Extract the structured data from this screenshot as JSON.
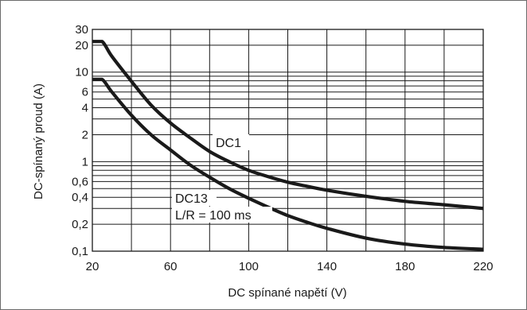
{
  "chart_data": {
    "type": "line",
    "xlabel": "DC spínané napětí (V)",
    "ylabel": "DC-spínaný proud (A)",
    "x_scale": "linear",
    "y_scale": "log",
    "xlim": [
      20,
      220
    ],
    "ylim": [
      0.1,
      30
    ],
    "grid": true,
    "x_ticks": [
      20,
      60,
      100,
      140,
      180,
      220
    ],
    "x_tick_labels": [
      "20",
      "60",
      "100",
      "140",
      "180",
      "220"
    ],
    "y_ticks": [
      0.1,
      0.2,
      0.4,
      0.6,
      1,
      2,
      4,
      6,
      10,
      20,
      30
    ],
    "y_tick_labels": [
      "0,1",
      "0,2",
      "0,4",
      "0,6",
      "1",
      "2",
      "4",
      "6",
      "10",
      "20",
      "30"
    ],
    "series": [
      {
        "name": "DC1",
        "x": [
          20,
          25,
          30,
          40,
          50,
          60,
          70,
          80,
          90,
          100,
          110,
          120,
          130,
          140,
          160,
          180,
          200,
          220
        ],
        "y": [
          22,
          22,
          15,
          7.9,
          4.3,
          2.7,
          1.85,
          1.3,
          1.0,
          0.8,
          0.68,
          0.59,
          0.53,
          0.48,
          0.41,
          0.36,
          0.33,
          0.3
        ]
      },
      {
        "name": "DC13",
        "x": [
          20,
          25,
          30,
          40,
          50,
          60,
          70,
          80,
          90,
          100,
          110,
          120,
          130,
          140,
          160,
          180,
          200,
          220
        ],
        "y": [
          8.3,
          8.3,
          6.0,
          3.3,
          2.0,
          1.35,
          0.92,
          0.67,
          0.5,
          0.39,
          0.31,
          0.25,
          0.21,
          0.18,
          0.14,
          0.12,
          0.11,
          0.105
        ]
      }
    ],
    "annotations": {
      "dc1": "DC1",
      "dc13": "DC13",
      "lr": "L/R = 100 ms"
    }
  }
}
